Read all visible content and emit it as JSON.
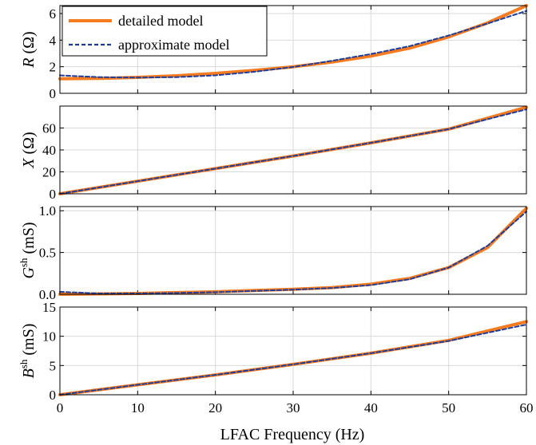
{
  "colors": {
    "detailed": "#f47b20",
    "approximate": "#1f3d99",
    "grid": "#d9d9d9",
    "axis": "#000000"
  },
  "legend": {
    "detailed_label": "detailed model",
    "approximate_label": "approximate model",
    "placement": "top-left of first panel"
  },
  "xaxis": {
    "label": "LFAC Frequency (Hz)",
    "ticks": [
      "0",
      "10",
      "20",
      "30",
      "40",
      "50",
      "60"
    ]
  },
  "chart_data": [
    {
      "type": "line",
      "panel": "R",
      "ylabel_main": "R",
      "ylabel_sup": "",
      "ylabel_unit": " (Ω)",
      "xlim": [
        0,
        60
      ],
      "ylim": [
        0,
        6.6
      ],
      "yticks": [
        0,
        2,
        4,
        6
      ],
      "ytick_labels": [
        "0",
        "2",
        "4",
        "6"
      ],
      "grid": true,
      "x": [
        0,
        5,
        10,
        15,
        20,
        25,
        30,
        35,
        40,
        45,
        50,
        55,
        60
      ],
      "series": [
        {
          "name": "detailed model",
          "values": [
            1.1,
            1.12,
            1.2,
            1.32,
            1.5,
            1.72,
            2.0,
            2.35,
            2.8,
            3.4,
            4.25,
            5.3,
            6.6
          ]
        },
        {
          "name": "approximate model",
          "values": [
            1.35,
            1.22,
            1.18,
            1.22,
            1.35,
            1.62,
            1.98,
            2.45,
            2.95,
            3.55,
            4.35,
            5.25,
            6.2
          ]
        }
      ]
    },
    {
      "type": "line",
      "panel": "X",
      "ylabel_main": "X",
      "ylabel_sup": "",
      "ylabel_unit": " (Ω)",
      "xlim": [
        0,
        60
      ],
      "ylim": [
        0,
        80
      ],
      "yticks": [
        0,
        20,
        40,
        60
      ],
      "ytick_labels": [
        "0",
        "20",
        "40",
        "60"
      ],
      "grid": true,
      "x": [
        0,
        10,
        20,
        30,
        40,
        50,
        60
      ],
      "series": [
        {
          "name": "detailed model",
          "values": [
            0,
            11.5,
            23,
            34.5,
            46.5,
            59,
            79
          ]
        },
        {
          "name": "approximate model",
          "values": [
            0,
            11.5,
            23,
            34.5,
            46.5,
            59,
            77
          ]
        }
      ]
    },
    {
      "type": "line",
      "panel": "Gsh",
      "ylabel_main": "G",
      "ylabel_sup": "sh",
      "ylabel_unit": " (mS)",
      "xlim": [
        0,
        60
      ],
      "ylim": [
        0,
        1.05
      ],
      "yticks": [
        0,
        0.5,
        1
      ],
      "ytick_labels": [
        "0.0",
        "0.5",
        "1.0"
      ],
      "grid": true,
      "x": [
        0,
        5,
        10,
        15,
        20,
        25,
        30,
        35,
        40,
        45,
        50,
        55,
        60
      ],
      "series": [
        {
          "name": "detailed model",
          "values": [
            0.0,
            0.005,
            0.01,
            0.02,
            0.03,
            0.045,
            0.06,
            0.08,
            0.12,
            0.19,
            0.32,
            0.56,
            1.03
          ]
        },
        {
          "name": "approximate model",
          "values": [
            0.03,
            0.01,
            0.01,
            0.015,
            0.025,
            0.04,
            0.055,
            0.075,
            0.11,
            0.18,
            0.32,
            0.58,
            0.99
          ]
        }
      ]
    },
    {
      "type": "line",
      "panel": "Bsh",
      "ylabel_main": "B",
      "ylabel_sup": "sh",
      "ylabel_unit": " (mS)",
      "xlim": [
        0,
        60
      ],
      "ylim": [
        0,
        15
      ],
      "yticks": [
        0,
        5,
        10,
        15
      ],
      "ytick_labels": [
        "0",
        "5",
        "10",
        "15"
      ],
      "grid": true,
      "x": [
        0,
        10,
        20,
        30,
        40,
        50,
        60
      ],
      "series": [
        {
          "name": "detailed model",
          "values": [
            0,
            1.7,
            3.4,
            5.2,
            7.1,
            9.3,
            12.5
          ]
        },
        {
          "name": "approximate model",
          "values": [
            0,
            1.7,
            3.4,
            5.2,
            7.1,
            9.2,
            12.0
          ]
        }
      ]
    }
  ]
}
